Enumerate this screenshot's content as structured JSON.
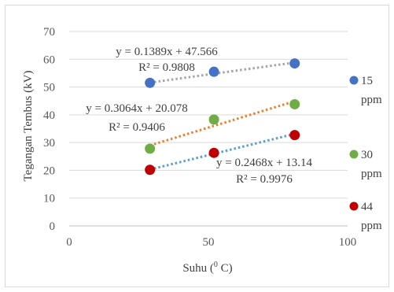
{
  "chart_data": {
    "type": "scatter",
    "title": "",
    "xlabel": "Suhu (0 C)",
    "xlabel_parts": {
      "pre": "Suhu (",
      "sup": "0",
      "post": " C)"
    },
    "ylabel": "Tegangan Tembus (kV)",
    "xlim": [
      0,
      100
    ],
    "ylim": [
      0,
      70
    ],
    "xticks": [
      0,
      50,
      100
    ],
    "yticks": [
      0,
      10,
      20,
      30,
      40,
      50,
      60,
      70
    ],
    "grid": "horizontal",
    "legend_position": "right",
    "series": [
      {
        "name": "15 ppm",
        "legend_lines": [
          "15",
          "ppm"
        ],
        "color": "#4472C4",
        "trend_color": "#A5A5A5",
        "x": [
          29,
          52,
          81
        ],
        "y": [
          51.5,
          55.5,
          58.5
        ],
        "trendline": {
          "slope": 0.1389,
          "intercept": 47.566,
          "equation": "y = 0.1389x + 47.566",
          "r2": "R² = 0.9808"
        }
      },
      {
        "name": "30 ppm",
        "legend_lines": [
          "30",
          "ppm"
        ],
        "color": "#70AD47",
        "trend_color": "#ED7D31",
        "x": [
          29,
          52,
          81
        ],
        "y": [
          27.8,
          38.3,
          43.8
        ],
        "trendline": {
          "slope": 0.3064,
          "intercept": 20.078,
          "equation": "y = 0.3064x + 20.078",
          "r2": "R² = 0.9406"
        }
      },
      {
        "name": "44 ppm",
        "legend_lines": [
          "44",
          "ppm"
        ],
        "color": "#C00000",
        "trend_color": "#5B9BD5",
        "x": [
          29,
          52,
          81
        ],
        "y": [
          20.2,
          26.3,
          32.7
        ],
        "trendline": {
          "slope": 0.2468,
          "intercept": 13.14,
          "equation": "y = 0.2468x + 13.14",
          "r2": "R² = 0.9976"
        }
      }
    ]
  }
}
